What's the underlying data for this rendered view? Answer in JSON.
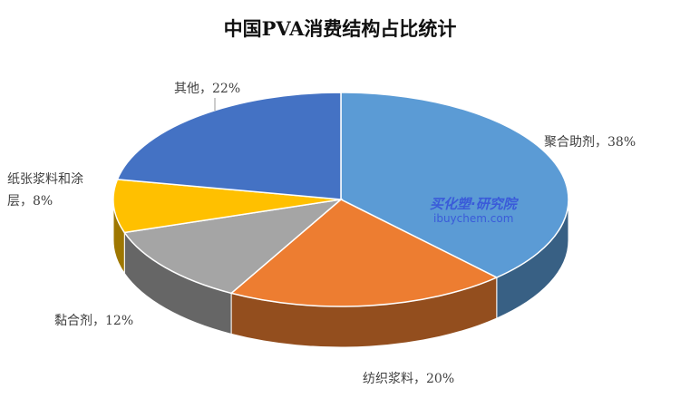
{
  "chart_data": {
    "type": "pie",
    "title": "中国PVA消费结构占比统计",
    "values": [
      38,
      20,
      12,
      8,
      22
    ],
    "value_labels": [
      "聚合助剂，38%",
      "纺织浆料，20%",
      "黏合剂，12%",
      "纸张浆料和涂层，8%",
      "其他，22%"
    ],
    "colors": [
      "#5b9bd5",
      "#ed7d31",
      "#a5a5a5",
      "#ffc000",
      "#4472c4"
    ],
    "watermark": {
      "title": "买化塑·研究院",
      "url": "ibuychem.com"
    }
  }
}
